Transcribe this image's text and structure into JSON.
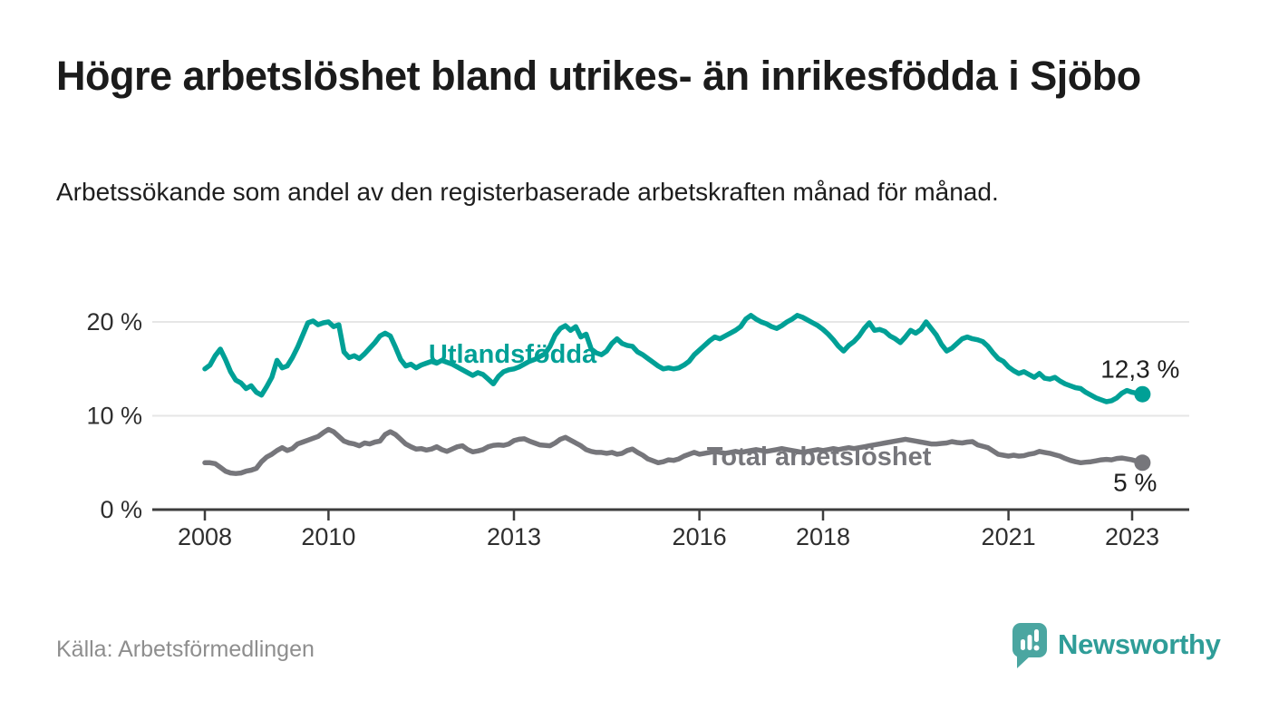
{
  "header": {
    "title": "Högre arbetslöshet bland utrikes- än inrikesfödda i Sjöbo",
    "subtitle": "Arbetssökande som andel av den registerbaserade arbetskraften månad för månad."
  },
  "footer": {
    "source": "Källa: Arbetsförmedlingen",
    "logo_text": "Newsworthy",
    "logo_color": "#4BA6A1",
    "logo_text_color": "#2F9D98"
  },
  "chart_data": {
    "type": "line",
    "title": "Högre arbetslöshet bland utrikes- än inrikesfödda i Sjöbo",
    "xlabel": "",
    "ylabel": "",
    "grid": "horizontal",
    "legend_position": "inline-labels",
    "colors": {
      "gridline": "#e6e6e6",
      "axis": "#3d3d3d",
      "tick_text": "#2e2e2e",
      "end_label_text": "#1f1f1f"
    },
    "x_axis": {
      "range": [
        2007.4,
        2023.9
      ],
      "ticks": [
        2008,
        2010,
        2013,
        2016,
        2018,
        2021,
        2023
      ],
      "tick_labels": [
        "2008",
        "2010",
        "2013",
        "2016",
        "2018",
        "2021",
        "2023"
      ]
    },
    "y_axis": {
      "range": [
        0,
        21.5
      ],
      "ticks": [
        0,
        10,
        20
      ],
      "tick_labels": [
        "0 %",
        "10 %",
        "20 %"
      ]
    },
    "series": [
      {
        "id": "utlandsfodda",
        "name": "Utlandsfödda",
        "color": "#00A096",
        "end_label": "12,3 %",
        "label_anchor": {
          "x": 2011.62,
          "y": 16.6
        },
        "start_year": 2008,
        "points_per_year": 12,
        "values": [
          15.0,
          15.4,
          16.4,
          17.1,
          16.0,
          14.7,
          13.8,
          13.5,
          12.9,
          13.2,
          12.5,
          12.2,
          13.1,
          14.1,
          15.9,
          15.1,
          15.3,
          16.2,
          17.3,
          18.6,
          19.9,
          20.1,
          19.7,
          19.9,
          20.0,
          19.5,
          19.7,
          16.8,
          16.2,
          16.4,
          16.1,
          16.6,
          17.2,
          17.8,
          18.5,
          18.8,
          18.5,
          17.3,
          16.0,
          15.3,
          15.5,
          15.1,
          15.4,
          15.6,
          15.8,
          15.6,
          15.9,
          15.7,
          15.5,
          15.2,
          14.9,
          14.6,
          14.3,
          14.6,
          14.4,
          13.9,
          13.4,
          14.2,
          14.7,
          14.9,
          15.0,
          15.2,
          15.5,
          15.8,
          16.0,
          16.3,
          16.6,
          17.4,
          18.6,
          19.3,
          19.6,
          19.1,
          19.5,
          18.4,
          18.7,
          17.1,
          16.7,
          16.5,
          16.9,
          17.7,
          18.2,
          17.7,
          17.5,
          17.4,
          16.8,
          16.5,
          16.1,
          15.7,
          15.3,
          15.0,
          15.1,
          15.0,
          15.1,
          15.4,
          15.8,
          16.5,
          17.0,
          17.5,
          18.0,
          18.4,
          18.2,
          18.5,
          18.8,
          19.1,
          19.5,
          20.3,
          20.7,
          20.3,
          20.0,
          19.8,
          19.5,
          19.3,
          19.6,
          20.0,
          20.3,
          20.7,
          20.5,
          20.2,
          19.9,
          19.6,
          19.2,
          18.7,
          18.1,
          17.4,
          16.9,
          17.5,
          17.9,
          18.5,
          19.3,
          19.9,
          19.1,
          19.2,
          19.0,
          18.5,
          18.2,
          17.8,
          18.4,
          19.1,
          18.8,
          19.2,
          20.0,
          19.3,
          18.6,
          17.6,
          16.9,
          17.2,
          17.7,
          18.2,
          18.4,
          18.2,
          18.1,
          17.9,
          17.4,
          16.7,
          16.1,
          15.8,
          15.2,
          14.8,
          14.5,
          14.7,
          14.4,
          14.1,
          14.5,
          14.0,
          13.9,
          14.1,
          13.7,
          13.4,
          13.2,
          13.0,
          12.9,
          12.5,
          12.2,
          11.9,
          11.7,
          11.5,
          11.6,
          11.9,
          12.4,
          12.7,
          12.5,
          12.4,
          12.3
        ]
      },
      {
        "id": "total",
        "name": "Total arbetslöshet",
        "color": "#76767B",
        "end_label": "5 %",
        "label_anchor": {
          "x": 2016.12,
          "y": 5.7
        },
        "start_year": 2008,
        "points_per_year": 12,
        "values": [
          5.0,
          5.0,
          4.9,
          4.5,
          4.1,
          3.9,
          3.85,
          3.9,
          4.1,
          4.2,
          4.4,
          5.1,
          5.6,
          5.9,
          6.3,
          6.6,
          6.3,
          6.5,
          7.0,
          7.2,
          7.4,
          7.6,
          7.8,
          8.2,
          8.55,
          8.3,
          7.8,
          7.3,
          7.1,
          7.0,
          6.8,
          7.1,
          7.0,
          7.2,
          7.3,
          8.0,
          8.3,
          8.0,
          7.5,
          7.0,
          6.7,
          6.45,
          6.5,
          6.35,
          6.45,
          6.7,
          6.4,
          6.2,
          6.45,
          6.7,
          6.8,
          6.4,
          6.15,
          6.25,
          6.4,
          6.7,
          6.85,
          6.9,
          6.85,
          7.0,
          7.35,
          7.5,
          7.55,
          7.3,
          7.1,
          6.9,
          6.85,
          6.8,
          7.1,
          7.5,
          7.7,
          7.4,
          7.1,
          6.8,
          6.4,
          6.2,
          6.1,
          6.1,
          6.0,
          6.1,
          5.9,
          6.0,
          6.3,
          6.45,
          6.1,
          5.8,
          5.4,
          5.2,
          5.0,
          5.1,
          5.3,
          5.25,
          5.4,
          5.7,
          5.9,
          6.1,
          5.9,
          6.0,
          6.1,
          6.2,
          6.1,
          6.0,
          6.1,
          6.2,
          6.1,
          6.2,
          6.3,
          6.4,
          6.3,
          6.2,
          6.3,
          6.4,
          6.5,
          6.4,
          6.3,
          6.2,
          6.1,
          6.2,
          6.3,
          6.4,
          6.3,
          6.4,
          6.5,
          6.4,
          6.5,
          6.6,
          6.5,
          6.6,
          6.7,
          6.8,
          6.9,
          7.0,
          7.1,
          7.2,
          7.3,
          7.4,
          7.5,
          7.4,
          7.3,
          7.2,
          7.1,
          7.0,
          7.0,
          7.05,
          7.1,
          7.25,
          7.15,
          7.1,
          7.2,
          7.25,
          6.9,
          6.75,
          6.6,
          6.25,
          5.9,
          5.8,
          5.7,
          5.8,
          5.7,
          5.75,
          5.9,
          6.0,
          6.2,
          6.1,
          6.0,
          5.85,
          5.7,
          5.45,
          5.25,
          5.1,
          5.0,
          5.05,
          5.1,
          5.2,
          5.3,
          5.35,
          5.3,
          5.45,
          5.5,
          5.4,
          5.3,
          5.15,
          5.0
        ]
      }
    ]
  }
}
